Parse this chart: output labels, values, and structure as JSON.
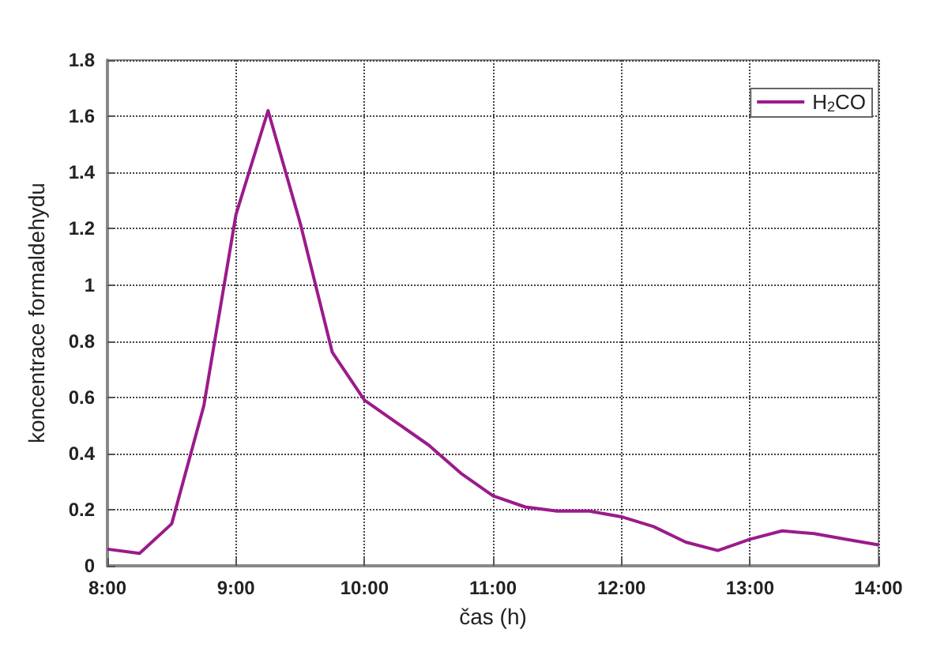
{
  "chart_data": {
    "type": "line",
    "xlabel": "čas (h)",
    "ylabel": "koncentrace formaldehydu",
    "x": [
      8,
      8.25,
      8.5,
      8.75,
      9,
      9.25,
      9.5,
      9.75,
      10,
      10.25,
      10.5,
      10.75,
      11,
      11.25,
      11.5,
      11.75,
      12,
      12.25,
      12.5,
      12.75,
      13,
      13.25,
      13.5,
      13.75,
      14
    ],
    "series": [
      {
        "name": "H$_{2}$CO",
        "color": "#9b1b8a",
        "values": [
          0.06,
          0.045,
          0.15,
          0.57,
          1.25,
          1.62,
          1.22,
          0.76,
          0.59,
          0.51,
          0.43,
          0.33,
          0.25,
          0.21,
          0.195,
          0.195,
          0.175,
          0.14,
          0.085,
          0.055,
          0.095,
          0.125,
          0.115,
          0.095,
          0.075
        ]
      }
    ],
    "xlim": [
      8,
      14
    ],
    "xticks": [
      {
        "value": 8,
        "label": "8:00"
      },
      {
        "value": 9,
        "label": "9:00"
      },
      {
        "value": 10,
        "label": "10:00"
      },
      {
        "value": 11,
        "label": "11:00"
      },
      {
        "value": 12,
        "label": "12:00"
      },
      {
        "value": 13,
        "label": "13:00"
      },
      {
        "value": 14,
        "label": "14:00"
      }
    ],
    "ylim": [
      0,
      1.8
    ],
    "yticks": [
      0,
      0.2,
      0.4,
      0.6,
      0.8,
      1,
      1.2,
      1.4,
      1.6,
      1.8
    ],
    "grid": true,
    "legend": "top right",
    "marker": "none",
    "line_style": "solid"
  }
}
